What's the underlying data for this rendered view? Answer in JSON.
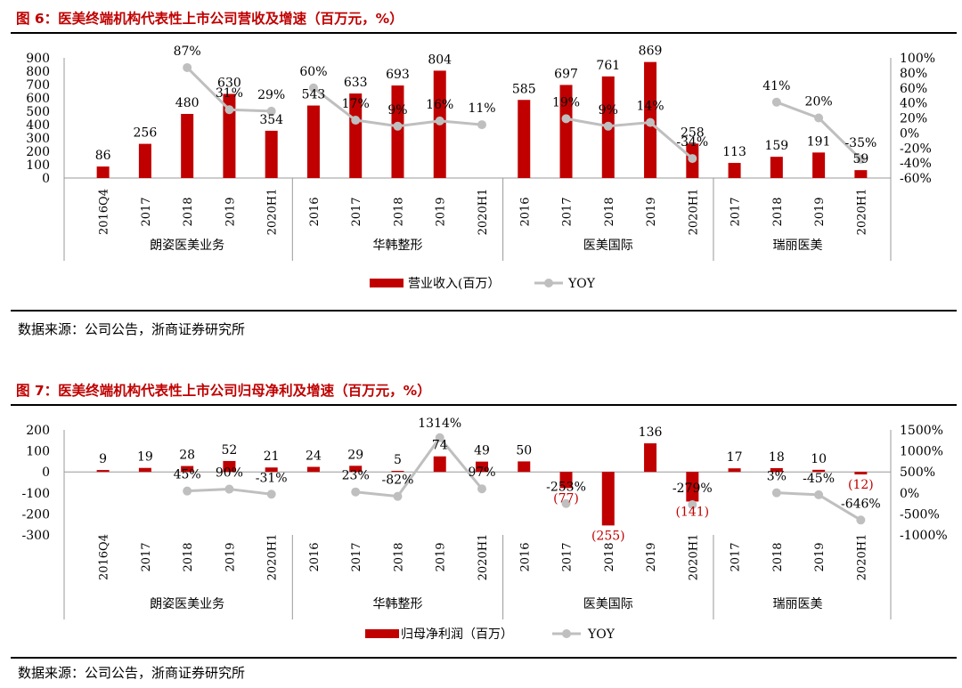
{
  "figures": [
    {
      "title": "图 6：医美终端机构代表性上市公司营收及增速（百万元，%）",
      "source": "数据来源：公司公告，浙商证券研究所"
    },
    {
      "title": "图 7：医美终端机构代表性上市公司归母净利及增速（百万元，%）",
      "source": "数据来源：公司公告，浙商证券研究所"
    }
  ],
  "colors": {
    "bar": "#c00000",
    "line": "#bfbfbf",
    "title": "#c00000",
    "negative_label": "#c00000"
  },
  "chart_data": [
    {
      "type": "bar",
      "groups": [
        "朗姿医美业务",
        "华韩整形",
        "医美国际",
        "瑞丽医美"
      ],
      "categories": [
        "2016Q4",
        "2017",
        "2018",
        "2019",
        "2020H1",
        "2016",
        "2017",
        "2018",
        "2019",
        "2020H1",
        "2016",
        "2017",
        "2018",
        "2019",
        "2020H1",
        "2017",
        "2018",
        "2019",
        "2020H1"
      ],
      "series": [
        {
          "name": "营业收入(百万）",
          "axis": "left",
          "kind": "bar",
          "values": [
            86,
            256,
            480,
            630,
            354,
            543,
            633,
            693,
            804,
            null,
            585,
            697,
            761,
            869,
            258,
            113,
            159,
            191,
            59
          ],
          "labels": [
            "86",
            "256",
            "480",
            "630",
            "354",
            "543",
            "633",
            "693",
            "804",
            "",
            "585",
            "697",
            "761",
            "869",
            "258",
            "113",
            "159",
            "191",
            "59"
          ]
        },
        {
          "name": "YOY",
          "axis": "right",
          "kind": "line",
          "values": [
            null,
            null,
            87,
            31,
            29,
            60,
            17,
            9,
            16,
            11,
            null,
            19,
            9,
            14,
            -34,
            null,
            41,
            20,
            -35
          ],
          "labels": [
            "",
            "",
            "87%",
            "31%",
            "29%",
            "60%",
            "17%",
            "9%",
            "16%",
            "11%",
            "",
            "19%",
            "9%",
            "14%",
            "-34%",
            "",
            "41%",
            "20%",
            "-35%"
          ]
        }
      ],
      "ylim_left": [
        0,
        900
      ],
      "yticks_left": [
        "0",
        "100",
        "200",
        "300",
        "400",
        "500",
        "600",
        "700",
        "800",
        "900"
      ],
      "ylim_right": [
        -60,
        100
      ],
      "yticks_right": [
        "-60%",
        "-40%",
        "-20%",
        "0%",
        "20%",
        "40%",
        "60%",
        "80%",
        "100%"
      ],
      "legend": "bottom"
    },
    {
      "type": "bar",
      "groups": [
        "朗姿医美业务",
        "华韩整形",
        "医美国际",
        "瑞丽医美"
      ],
      "categories": [
        "2016Q4",
        "2017",
        "2018",
        "2019",
        "2020H1",
        "2016",
        "2017",
        "2018",
        "2019",
        "2020H1",
        "2016",
        "2017",
        "2018",
        "2019",
        "2020H1",
        "2017",
        "2018",
        "2019",
        "2020H1"
      ],
      "series": [
        {
          "name": "归母净利润（百万）",
          "axis": "left",
          "kind": "bar",
          "values": [
            9,
            19,
            28,
            52,
            21,
            24,
            29,
            5,
            74,
            49,
            50,
            -77,
            -255,
            136,
            -141,
            17,
            18,
            10,
            -12
          ],
          "labels": [
            "9",
            "19",
            "28",
            "52",
            "21",
            "24",
            "29",
            "5",
            "74",
            "49",
            "50",
            "(77)",
            "(255)",
            "136",
            "(141)",
            "17",
            "18",
            "10",
            "(12)"
          ]
        },
        {
          "name": "YOY",
          "axis": "right",
          "kind": "line",
          "values": [
            null,
            null,
            45,
            90,
            -31,
            null,
            23,
            -82,
            1314,
            97,
            null,
            -253,
            null,
            null,
            -279,
            null,
            3,
            -45,
            -646
          ],
          "labels": [
            "",
            "",
            "45%",
            "90%",
            "-31%",
            "",
            "23%",
            "-82%",
            "1314%",
            "97%",
            "",
            "-253%",
            "",
            "",
            "-279%",
            "",
            "3%",
            "-45%",
            "-646%"
          ]
        }
      ],
      "ylim_left": [
        -300,
        200
      ],
      "yticks_left": [
        "-300",
        "-200",
        "-100",
        "0",
        "100",
        "200"
      ],
      "ylim_right": [
        -1000,
        1500
      ],
      "yticks_right": [
        "-1000%",
        "-500%",
        "0%",
        "500%",
        "1000%",
        "1500%"
      ],
      "legend": "bottom"
    }
  ]
}
